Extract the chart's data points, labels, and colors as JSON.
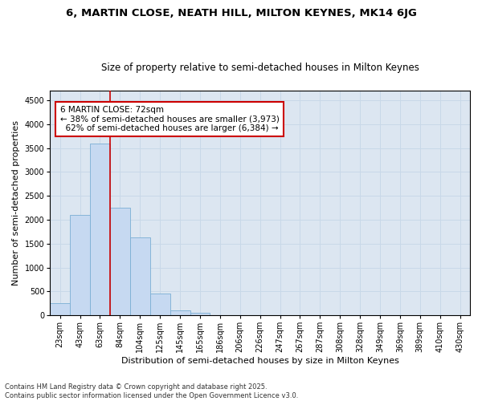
{
  "title1": "6, MARTIN CLOSE, NEATH HILL, MILTON KEYNES, MK14 6JG",
  "title2": "Size of property relative to semi-detached houses in Milton Keynes",
  "xlabel": "Distribution of semi-detached houses by size in Milton Keynes",
  "ylabel": "Number of semi-detached properties",
  "categories": [
    "23sqm",
    "43sqm",
    "63sqm",
    "84sqm",
    "104sqm",
    "125sqm",
    "145sqm",
    "165sqm",
    "186sqm",
    "206sqm",
    "226sqm",
    "247sqm",
    "267sqm",
    "287sqm",
    "308sqm",
    "328sqm",
    "349sqm",
    "369sqm",
    "389sqm",
    "410sqm",
    "430sqm"
  ],
  "values": [
    250,
    2100,
    3600,
    2250,
    1630,
    450,
    100,
    50,
    0,
    0,
    0,
    0,
    0,
    0,
    0,
    0,
    0,
    0,
    0,
    0,
    0
  ],
  "bar_color": "#c6d9f1",
  "bar_edge_color": "#7bafd4",
  "vline_x_index": 2.5,
  "property_size": "72sqm",
  "pct_smaller": "38%",
  "count_smaller": "3,973",
  "pct_larger": "62%",
  "count_larger": "6,384",
  "annotation_box_facecolor": "#ffffff",
  "annotation_box_edgecolor": "#cc0000",
  "vline_color": "#cc0000",
  "ylim": [
    0,
    4700
  ],
  "yticks": [
    0,
    500,
    1000,
    1500,
    2000,
    2500,
    3000,
    3500,
    4000,
    4500
  ],
  "grid_color": "#c8d8e8",
  "bg_color": "#dce6f1",
  "footer": "Contains HM Land Registry data © Crown copyright and database right 2025.\nContains public sector information licensed under the Open Government Licence v3.0.",
  "title_fontsize": 9.5,
  "subtitle_fontsize": 8.5,
  "axis_label_fontsize": 8,
  "tick_fontsize": 7,
  "annotation_fontsize": 7.5,
  "footer_fontsize": 6
}
